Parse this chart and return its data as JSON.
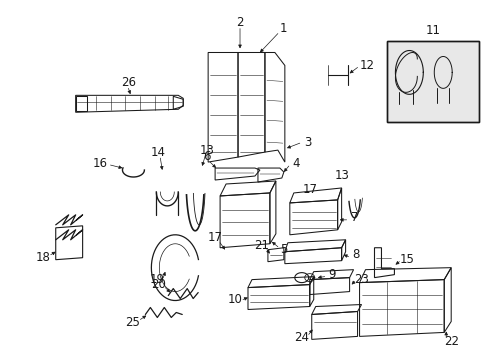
{
  "bg_color": "#ffffff",
  "line_color": "#1a1a1a",
  "fig_width": 4.89,
  "fig_height": 3.6,
  "dpi": 100,
  "font_size": 8.5,
  "lw": 0.75
}
